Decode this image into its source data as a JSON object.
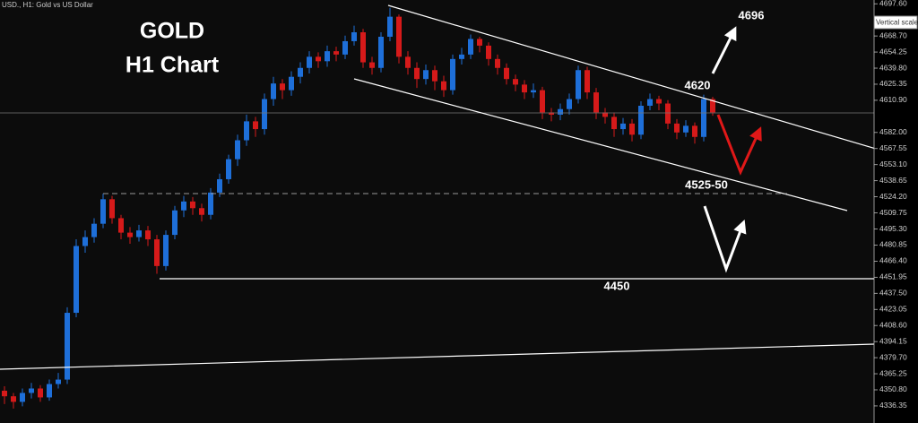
{
  "chart_data": {
    "type": "candlestick",
    "title": "USD., H1:  Gold vs US Dollar",
    "axis_button": "Vertical scale",
    "annotations": {
      "headline": "GOLD",
      "subheadline": "H1 Chart",
      "target": "4696",
      "resistance": "4620",
      "support_zone": "4525-50",
      "support": "4450"
    },
    "up_color": "#1e6fd9",
    "down_color": "#d61a1a",
    "grid": false,
    "ylim": [
      4321,
      4701
    ],
    "yticks": [
      {
        "value": 4697.6,
        "label": "4697.60"
      },
      {
        "value": 4668.7,
        "label": "4668.70"
      },
      4654.25,
      {
        "value": 4639.8,
        "label": "4639.80"
      },
      4625.35,
      {
        "value": 4610.9,
        "label": "4610.90"
      },
      {
        "value": 4582,
        "label": "4582.00"
      },
      4567.55,
      {
        "value": 4553.1,
        "label": "4553.10"
      },
      4538.65,
      {
        "value": 4524.2,
        "label": "4524.20"
      },
      4509.75,
      {
        "value": 4495.3,
        "label": "4495.30"
      },
      4480.85,
      {
        "value": 4466.4,
        "label": "4466.40"
      },
      4451.95,
      {
        "value": 4437.5,
        "label": "4437.50"
      },
      4423.05,
      {
        "value": 4408.6,
        "label": "4408.60"
      },
      4394.15,
      {
        "value": 4379.7,
        "label": "4379.70"
      },
      4365.25,
      {
        "value": 4350.8,
        "label": "4350.80"
      },
      4336.35
    ],
    "open": [
      4350,
      4345,
      4340,
      4348,
      4352,
      4344,
      4356,
      4360,
      4420,
      4480,
      4488,
      4500,
      4522,
      4505,
      4492,
      4488,
      4494,
      4486,
      4462,
      4490,
      4512,
      4520,
      4514,
      4508,
      4528,
      4540,
      4558,
      4575,
      4592,
      4585,
      4612,
      4626,
      4620,
      4632,
      4640,
      4650,
      4646,
      4655,
      4652,
      4664,
      4672,
      4645,
      4640,
      4668,
      4686,
      4650,
      4640,
      4630,
      4638,
      4628,
      4620,
      4648,
      4652,
      4666,
      4660,
      4648,
      4640,
      4630,
      4625,
      4618,
      4620,
      4600,
      4598,
      4603,
      4612,
      4638,
      4618,
      4600,
      4596,
      4585,
      4590,
      4580,
      4606,
      4612,
      4608,
      4590,
      4582,
      4588,
      4578,
      4612
    ],
    "high": [
      4354,
      4348,
      4352,
      4357,
      4355,
      4360,
      4366,
      4425,
      4486,
      4494,
      4505,
      4527,
      4525,
      4508,
      4497,
      4499,
      4498,
      4490,
      4494,
      4516,
      4525,
      4524,
      4518,
      4532,
      4545,
      4562,
      4580,
      4598,
      4596,
      4617,
      4632,
      4630,
      4637,
      4645,
      4655,
      4654,
      4660,
      4659,
      4669,
      4678,
      4675,
      4650,
      4672,
      4694,
      4688,
      4655,
      4645,
      4643,
      4642,
      4633,
      4652,
      4658,
      4670,
      4668,
      4663,
      4652,
      4644,
      4634,
      4629,
      4626,
      4623,
      4604,
      4608,
      4617,
      4642,
      4641,
      4622,
      4604,
      4600,
      4595,
      4594,
      4610,
      4617,
      4615,
      4611,
      4594,
      4593,
      4591,
      4616,
      4614
    ],
    "low": [
      4338,
      4334,
      4336,
      4343,
      4340,
      4341,
      4352,
      4356,
      4416,
      4474,
      4483,
      4496,
      4500,
      4486,
      4482,
      4484,
      4480,
      4455,
      4458,
      4486,
      4506,
      4508,
      4502,
      4504,
      4524,
      4536,
      4552,
      4570,
      4578,
      4580,
      4606,
      4612,
      4615,
      4626,
      4635,
      4640,
      4641,
      4646,
      4648,
      4660,
      4640,
      4634,
      4636,
      4664,
      4644,
      4634,
      4622,
      4625,
      4620,
      4614,
      4616,
      4643,
      4648,
      4654,
      4642,
      4634,
      4625,
      4619,
      4612,
      4613,
      4594,
      4592,
      4593,
      4598,
      4608,
      4612,
      4594,
      4590,
      4578,
      4580,
      4574,
      4576,
      4602,
      4602,
      4585,
      4576,
      4578,
      4572,
      4574,
      4597
    ],
    "close": [
      4345,
      4340,
      4348,
      4352,
      4344,
      4356,
      4360,
      4420,
      4480,
      4488,
      4500,
      4522,
      4505,
      4492,
      4488,
      4494,
      4486,
      4462,
      4490,
      4512,
      4520,
      4514,
      4508,
      4528,
      4540,
      4558,
      4575,
      4592,
      4585,
      4612,
      4626,
      4620,
      4632,
      4640,
      4650,
      4646,
      4655,
      4652,
      4664,
      4672,
      4645,
      4640,
      4668,
      4686,
      4650,
      4640,
      4630,
      4638,
      4628,
      4620,
      4648,
      4652,
      4666,
      4660,
      4648,
      4640,
      4630,
      4625,
      4618,
      4620,
      4600,
      4598,
      4603,
      4612,
      4638,
      4618,
      4600,
      4596,
      4585,
      4590,
      4580,
      4606,
      4612,
      4608,
      4590,
      4582,
      4588,
      4578,
      4612,
      4600
    ]
  }
}
